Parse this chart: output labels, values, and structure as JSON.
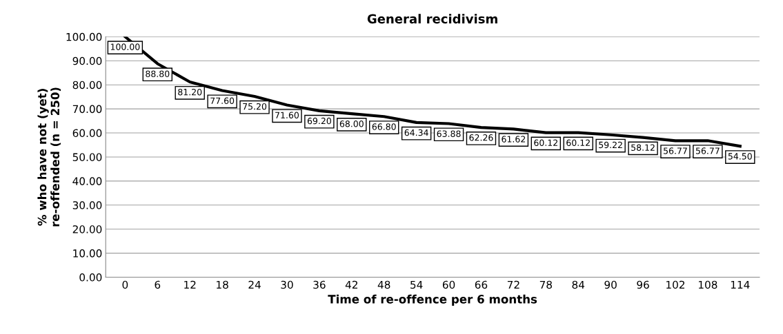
{
  "chart_data": {
    "type": "line",
    "title": "General recidivism",
    "xlabel": "Time of re-offence per 6 months",
    "ylabel": "% who have not (yet)\nre-offended (n = 250)",
    "categories": [
      "0",
      "6",
      "12",
      "18",
      "24",
      "30",
      "36",
      "42",
      "48",
      "54",
      "60",
      "66",
      "72",
      "78",
      "84",
      "90",
      "96",
      "102",
      "108",
      "114"
    ],
    "series": [
      {
        "color": "#000000",
        "values": [
          100,
          88.8,
          81.2,
          77.6,
          75.2,
          71.6,
          69.2,
          68.0,
          66.8,
          64.34,
          63.88,
          62.26,
          61.62,
          60.12,
          60.12,
          59.22,
          58.12,
          56.77,
          56.77,
          54.5
        ],
        "value_labels": [
          "100.00",
          "88.80",
          "81.20",
          "77.60",
          "75.20",
          "71.60",
          "69.20",
          "68.00",
          "66.80",
          "64.34",
          "63.88",
          "62.26",
          "61.62",
          "60.12",
          "60.12",
          "59.22",
          "58.12",
          "56.77",
          "56.77",
          "54.50"
        ]
      }
    ],
    "ylim": [
      0,
      100
    ],
    "yticks": [
      {
        "value": 0,
        "label": "0.00"
      },
      {
        "value": 10,
        "label": "10.00"
      },
      {
        "value": 20,
        "label": "20.00"
      },
      {
        "value": 30,
        "label": "30.00"
      },
      {
        "value": 40,
        "label": "40.00"
      },
      {
        "value": 50,
        "label": "50.00"
      },
      {
        "value": 60,
        "label": "60.00"
      },
      {
        "value": 70,
        "label": "70.00"
      },
      {
        "value": 80,
        "label": "80.00"
      },
      {
        "value": 90,
        "label": "90.00"
      },
      {
        "value": 100,
        "label": "100.00"
      }
    ],
    "grid": "y",
    "marker": "none",
    "line_style": "solid"
  }
}
